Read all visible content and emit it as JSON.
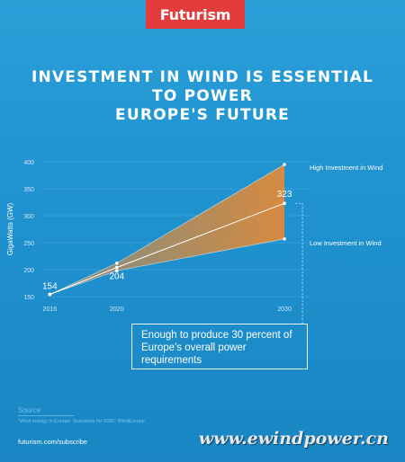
{
  "brand": {
    "logo": "Futurism"
  },
  "title": {
    "line1": "INVESTMENT IN WIND IS ESSENTIAL TO POWER",
    "line2": "EUROPE'S FUTURE"
  },
  "chart_data": {
    "type": "line",
    "ylabel": "GigaWatts (GW)",
    "xlabel": "",
    "x": [
      2016,
      2020,
      2030
    ],
    "xticks": [
      "2016",
      "2020",
      "2030"
    ],
    "yticks": [
      "150",
      "200",
      "250",
      "300",
      "350",
      "400"
    ],
    "ylim": [
      150,
      400
    ],
    "grid": true,
    "series": [
      {
        "name": "High Investment in Wind",
        "values": [
          154,
          212,
          395
        ]
      },
      {
        "name": "Low Investment in Wind",
        "values": [
          154,
          198,
          257
        ]
      },
      {
        "name": "",
        "values": [
          154,
          204,
          323
        ]
      }
    ],
    "data_labels": [
      {
        "text": "154",
        "x": 2016,
        "y": 154
      },
      {
        "text": "204",
        "x": 2020,
        "y": 204
      },
      {
        "text": "323",
        "x": 2030,
        "y": 323
      }
    ],
    "annotation": "Enough to produce 30 percent of Europe's overall power requirements",
    "colors": {
      "band": "#d88a3c",
      "line": "#ffffff",
      "grid": "#5fb6e3"
    }
  },
  "callout": {
    "line1": "Enough to produce 30 percent of",
    "line2": "Europe's overall power",
    "line3": "requirements"
  },
  "source": {
    "heading": "Source",
    "text": "\"Wind energy in Europe: Scenarios for 2030\" WindEurope"
  },
  "footer": {
    "subscribe": "futurism.com/subscribe",
    "watermark": "www.ewindpower.cn"
  }
}
